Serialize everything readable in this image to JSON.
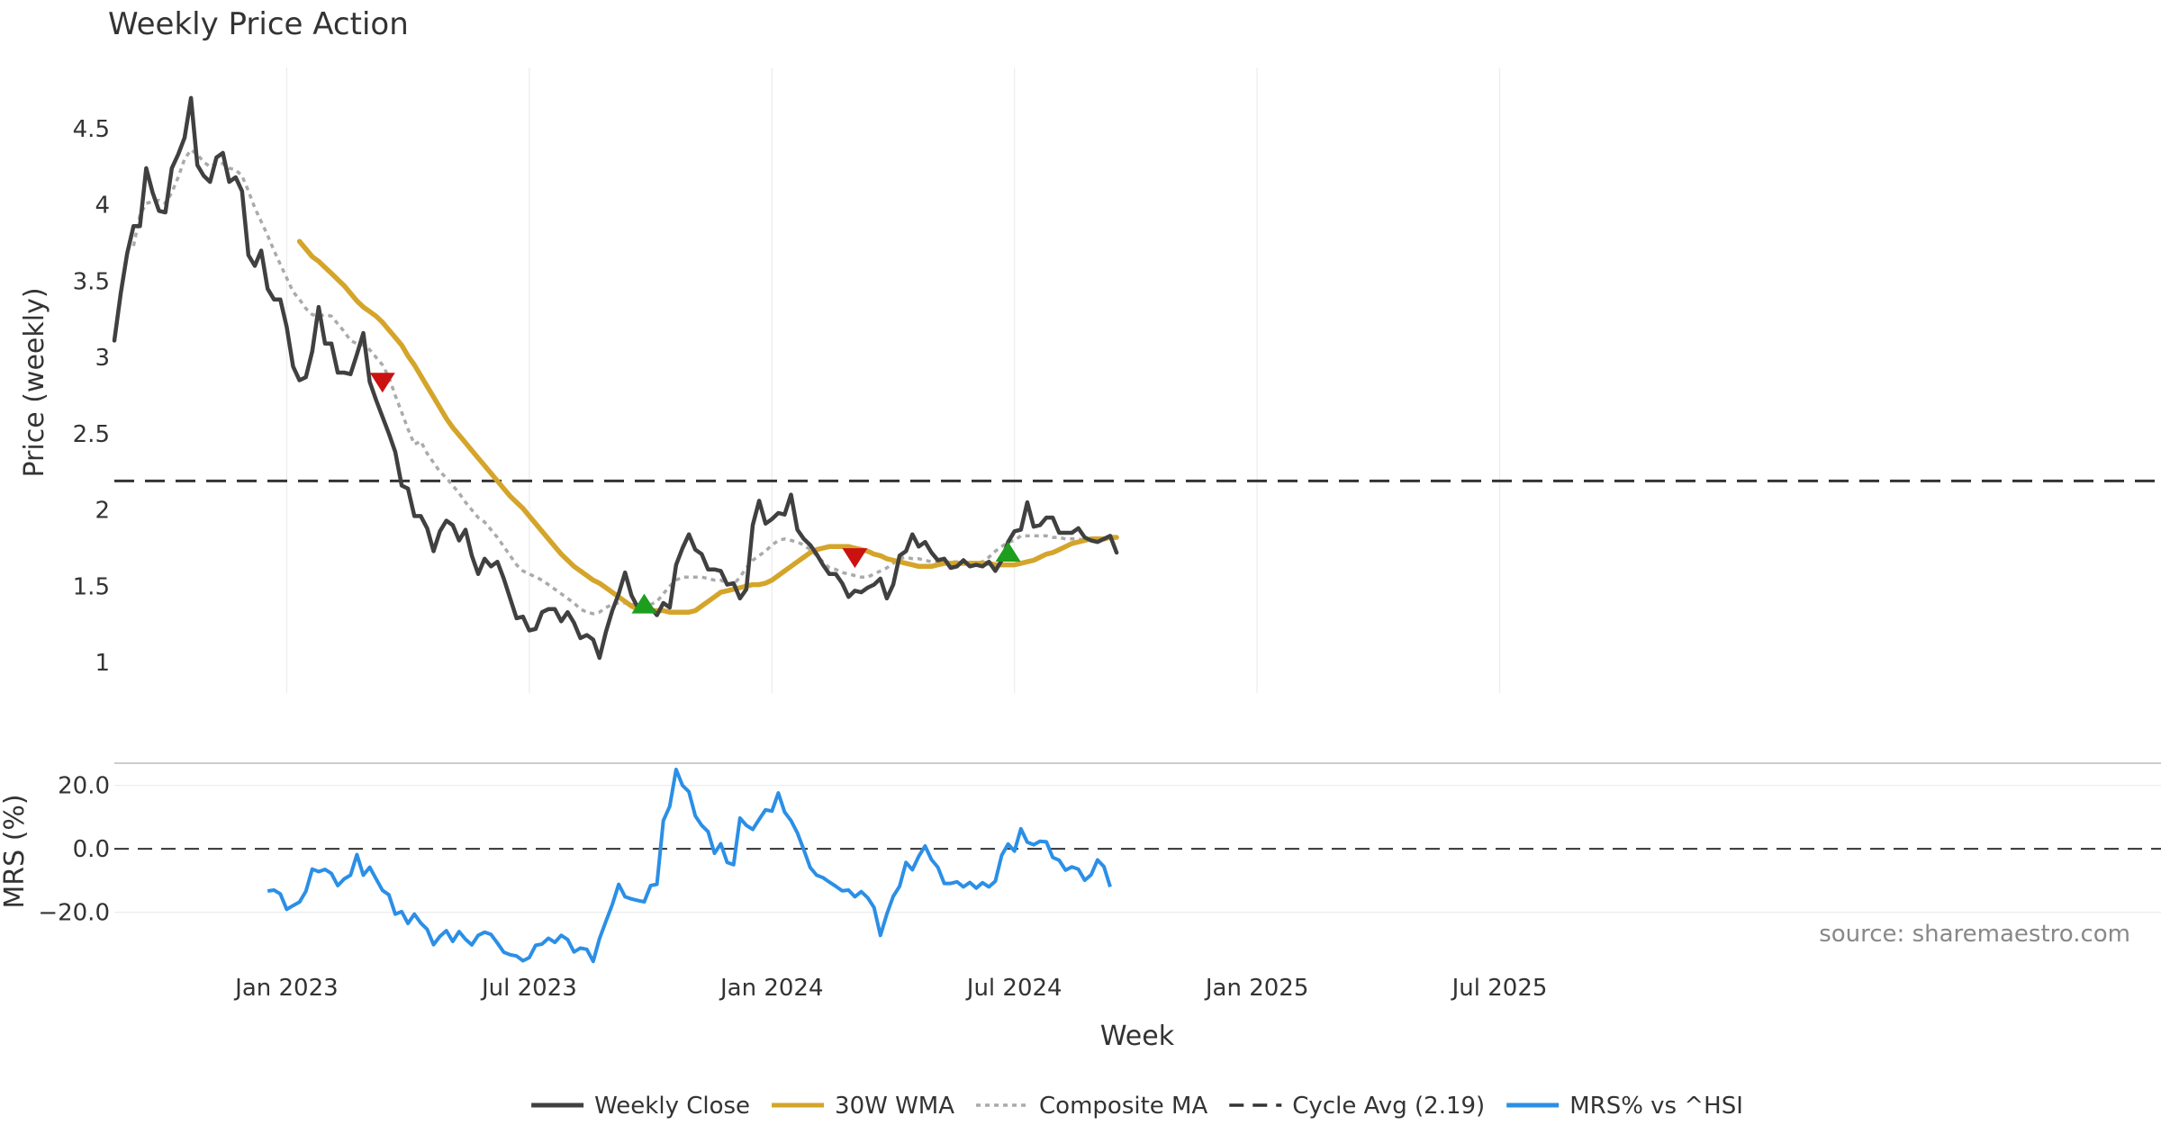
{
  "chart_data": {
    "type": "line",
    "title": "Weekly Price Action",
    "xlabel": "Week",
    "source_note": "source: sharemaestro.com",
    "x_ticks": [
      "Jan 2023",
      "Jul 2023",
      "Jan 2024",
      "Jul 2024",
      "Jan 2025",
      "Jul 2025"
    ],
    "price_panel": {
      "ylabel": "Price (weekly)",
      "ylim": [
        0.8,
        4.9
      ],
      "y_ticks": [
        "1",
        "1.5",
        "2",
        "2.5",
        "3",
        "3.5",
        "4",
        "4.5"
      ],
      "cycle_avg": 2.19,
      "series": [
        {
          "name": "Weekly Close",
          "color": "#404040",
          "start_week": 0,
          "values": [
            3.11,
            3.42,
            3.68,
            3.86,
            3.86,
            4.24,
            4.08,
            3.96,
            3.95,
            4.24,
            4.33,
            4.44,
            4.7,
            4.26,
            4.19,
            4.15,
            4.31,
            4.34,
            4.15,
            4.18,
            4.09,
            3.67,
            3.6,
            3.7,
            3.45,
            3.38,
            3.38,
            3.2,
            2.94,
            2.85,
            2.87,
            3.04,
            3.33,
            3.09,
            3.09,
            2.9,
            2.9,
            2.89,
            3.02,
            3.16,
            2.84,
            2.72,
            2.61,
            2.5,
            2.38,
            2.16,
            2.14,
            1.96,
            1.96,
            1.88,
            1.73,
            1.86,
            1.93,
            1.9,
            1.8,
            1.87,
            1.7,
            1.58,
            1.68,
            1.63,
            1.66,
            1.55,
            1.42,
            1.29,
            1.3,
            1.21,
            1.22,
            1.33,
            1.35,
            1.35,
            1.27,
            1.33,
            1.26,
            1.16,
            1.18,
            1.15,
            1.03,
            1.2,
            1.34,
            1.45,
            1.59,
            1.44,
            1.36,
            1.36,
            1.36,
            1.31,
            1.39,
            1.36,
            1.64,
            1.75,
            1.84,
            1.74,
            1.71,
            1.61,
            1.61,
            1.6,
            1.51,
            1.52,
            1.42,
            1.48,
            1.9,
            2.06,
            1.91,
            1.94,
            1.98,
            1.97,
            2.1,
            1.87,
            1.81,
            1.77,
            1.71,
            1.64,
            1.58,
            1.58,
            1.52,
            1.43,
            1.47,
            1.46,
            1.49,
            1.51,
            1.55,
            1.42,
            1.51,
            1.7,
            1.73,
            1.84,
            1.76,
            1.79,
            1.72,
            1.67,
            1.68,
            1.62,
            1.63,
            1.67,
            1.63,
            1.64,
            1.63,
            1.66,
            1.6,
            1.67,
            1.79,
            1.86,
            1.87,
            2.05,
            1.89,
            1.9,
            1.95,
            1.95,
            1.85,
            1.85,
            1.85,
            1.88,
            1.82,
            1.8,
            1.79,
            1.81,
            1.83,
            1.72
          ]
        },
        {
          "name": "30W WMA",
          "color": "#D4A52A",
          "start_week": 29,
          "values": [
            3.76,
            3.71,
            3.66,
            3.63,
            3.59,
            3.55,
            3.51,
            3.47,
            3.42,
            3.37,
            3.33,
            3.3,
            3.27,
            3.23,
            3.18,
            3.13,
            3.08,
            3.01,
            2.95,
            2.88,
            2.81,
            2.74,
            2.67,
            2.6,
            2.54,
            2.49,
            2.44,
            2.39,
            2.34,
            2.29,
            2.24,
            2.19,
            2.14,
            2.09,
            2.05,
            2.01,
            1.96,
            1.91,
            1.86,
            1.81,
            1.76,
            1.71,
            1.67,
            1.63,
            1.6,
            1.57,
            1.54,
            1.52,
            1.49,
            1.46,
            1.43,
            1.4,
            1.37,
            1.35,
            1.34,
            1.34,
            1.34,
            1.34,
            1.33,
            1.33,
            1.33,
            1.33,
            1.34,
            1.37,
            1.4,
            1.43,
            1.46,
            1.47,
            1.48,
            1.49,
            1.5,
            1.51,
            1.51,
            1.52,
            1.54,
            1.57,
            1.6,
            1.63,
            1.66,
            1.69,
            1.72,
            1.74,
            1.75,
            1.76,
            1.76,
            1.76,
            1.76,
            1.75,
            1.74,
            1.73,
            1.71,
            1.7,
            1.68,
            1.67,
            1.66,
            1.65,
            1.64,
            1.63,
            1.63,
            1.63,
            1.64,
            1.65,
            1.65,
            1.65,
            1.65,
            1.65,
            1.65,
            1.65,
            1.65,
            1.64,
            1.64,
            1.64,
            1.64,
            1.65,
            1.66,
            1.67,
            1.69,
            1.71,
            1.72,
            1.74,
            1.76,
            1.78,
            1.79,
            1.8,
            1.81,
            1.81,
            1.81,
            1.82,
            1.82
          ]
        },
        {
          "name": "Composite MA",
          "color": "#AAAAAA",
          "start_week": 3,
          "values": [
            3.73,
            3.93,
            4.01,
            4.02,
            4.03,
            4.01,
            4.08,
            4.18,
            4.3,
            4.36,
            4.33,
            4.28,
            4.25,
            4.27,
            4.27,
            4.24,
            4.23,
            4.19,
            4.09,
            3.98,
            3.89,
            3.8,
            3.7,
            3.61,
            3.52,
            3.43,
            3.38,
            3.32,
            3.28,
            3.27,
            3.28,
            3.27,
            3.22,
            3.17,
            3.11,
            3.09,
            3.08,
            3.05,
            3.0,
            2.95,
            2.87,
            2.75,
            2.64,
            2.53,
            2.43,
            2.45,
            2.37,
            2.31,
            2.25,
            2.21,
            2.16,
            2.11,
            2.05,
            2.0,
            1.95,
            1.92,
            1.87,
            1.82,
            1.76,
            1.7,
            1.64,
            1.6,
            1.58,
            1.56,
            1.54,
            1.51,
            1.48,
            1.45,
            1.42,
            1.39,
            1.35,
            1.33,
            1.32,
            1.33,
            1.36,
            1.38,
            1.39,
            1.39,
            1.38,
            1.38,
            1.38,
            1.38,
            1.4,
            1.45,
            1.5,
            1.54,
            1.56,
            1.56,
            1.56,
            1.56,
            1.55,
            1.54,
            1.54,
            1.52,
            1.51,
            1.56,
            1.62,
            1.67,
            1.7,
            1.73,
            1.77,
            1.8,
            1.81,
            1.8,
            1.79,
            1.77,
            1.74,
            1.7,
            1.66,
            1.62,
            1.61,
            1.59,
            1.58,
            1.57,
            1.56,
            1.56,
            1.58,
            1.6,
            1.62,
            1.65,
            1.68,
            1.69,
            1.68,
            1.68,
            1.67,
            1.66,
            1.66,
            1.66,
            1.66,
            1.66,
            1.65,
            1.65,
            1.65,
            1.66,
            1.69,
            1.73,
            1.76,
            1.79,
            1.8,
            1.83,
            1.83,
            1.83,
            1.83,
            1.83,
            1.82,
            1.82,
            1.81,
            1.81,
            1.81,
            1.8
          ]
        }
      ],
      "signals": [
        {
          "type": "sell",
          "week": 42,
          "value": 2.84,
          "color": "#CC1111"
        },
        {
          "type": "buy",
          "week": 83,
          "value": 1.38,
          "color": "#1E9E1E"
        },
        {
          "type": "sell",
          "week": 116,
          "value": 1.69,
          "color": "#CC1111"
        },
        {
          "type": "buy",
          "week": 140,
          "value": 1.72,
          "color": "#1E9E1E"
        }
      ]
    },
    "mrs_panel": {
      "ylabel": "MRS (%)",
      "ylim": [
        -36,
        27
      ],
      "y_ticks": [
        "20.0",
        "0.0",
        "−20.0"
      ],
      "zero_line": 0,
      "series": [
        {
          "name": "MRS% vs ^HSI",
          "color": "#2B8FE6",
          "start_week": 24,
          "values": [
            -13.3,
            -13.0,
            -14.2,
            -19.1,
            -17.9,
            -16.8,
            -13.4,
            -6.4,
            -7.2,
            -6.5,
            -7.8,
            -11.6,
            -9.5,
            -8.3,
            -1.8,
            -8.3,
            -5.8,
            -9.5,
            -13.1,
            -14.5,
            -20.6,
            -19.8,
            -23.5,
            -20.6,
            -23.4,
            -25.4,
            -30.2,
            -27.6,
            -25.8,
            -29.2,
            -26.1,
            -28.5,
            -30.3,
            -27.3,
            -26.3,
            -27.0,
            -29.7,
            -32.6,
            -33.4,
            -33.8,
            -35.3,
            -34.3,
            -30.4,
            -30.0,
            -28.2,
            -29.5,
            -27.3,
            -28.6,
            -32.5,
            -31.3,
            -31.7,
            -35.5,
            -28.3,
            -22.9,
            -17.6,
            -11.2,
            -15.1,
            -15.8,
            -16.3,
            -16.7,
            -11.6,
            -11.2,
            8.9,
            13.4,
            25.0,
            20.0,
            18.0,
            10.4,
            7.4,
            5.4,
            -1.4,
            1.6,
            -4.3,
            -5.0,
            9.7,
            7.4,
            6.1,
            9.3,
            12.3,
            11.9,
            17.6,
            11.6,
            8.9,
            5.0,
            -0.3,
            -5.9,
            -8.3,
            -9.1,
            -10.5,
            -11.8,
            -13.2,
            -13.0,
            -15.1,
            -13.5,
            -15.4,
            -18.5,
            -27.3,
            -20.6,
            -15.0,
            -11.8,
            -4.3,
            -6.6,
            -2.4,
            0.9,
            -3.4,
            -5.8,
            -10.9,
            -10.9,
            -10.4,
            -12.0,
            -10.6,
            -12.4,
            -10.7,
            -12.0,
            -10.2,
            -2.0,
            1.5,
            -0.7,
            6.3,
            2.1,
            1.3,
            2.4,
            2.2,
            -2.7,
            -3.6,
            -6.7,
            -5.7,
            -6.4,
            -9.9,
            -8.2,
            -3.5,
            -5.6,
            -12.0
          ]
        }
      ]
    },
    "legend_position": "bottom-center",
    "legend": [
      {
        "label": "Weekly Close",
        "color": "#404040",
        "style": "solid"
      },
      {
        "label": "30W WMA",
        "color": "#D4A52A",
        "style": "solid"
      },
      {
        "label": "Composite MA",
        "color": "#AAAAAA",
        "style": "dotted"
      },
      {
        "label": "Cycle Avg (2.19)",
        "color": "#333333",
        "style": "dashed"
      },
      {
        "label": "MRS% vs ^HSI",
        "color": "#2B8FE6",
        "style": "solid"
      }
    ]
  }
}
